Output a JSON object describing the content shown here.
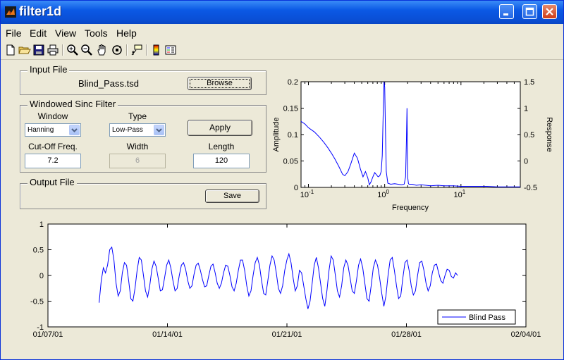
{
  "window": {
    "title": "filter1d",
    "icon": "matlab-icon",
    "controls": [
      "minimize",
      "maximize",
      "close"
    ]
  },
  "menu": [
    "File",
    "Edit",
    "View",
    "Tools",
    "Help"
  ],
  "toolbar": [
    "new-file-icon",
    "open-folder-icon",
    "save-icon",
    "print-icon",
    "zoom-in-icon",
    "zoom-out-icon",
    "pan-hand-icon",
    "rotate-3d-icon",
    "data-cursor-icon",
    "colorbar-icon",
    "legend-icon"
  ],
  "input_file": {
    "title": "Input File",
    "filename": "Blind_Pass.tsd",
    "browse_label": "Browse"
  },
  "filter": {
    "title": "Windowed Sinc Filter",
    "window_label": "Window",
    "window_value": "Hanning",
    "type_label": "Type",
    "type_value": "Low-Pass",
    "apply_label": "Apply",
    "cutoff_label": "Cut-Off Freq.",
    "cutoff_value": "7.2",
    "width_label": "Width",
    "width_value": "6",
    "length_label": "Length",
    "length_value": "120"
  },
  "output_file": {
    "title": "Output File",
    "save_label": "Save"
  },
  "colors": {
    "series": "#0000ff",
    "titlebar": "#0a4fd6"
  },
  "chart_data": [
    {
      "type": "line",
      "xlabel": "Frequency",
      "ylabel": "Amplitude",
      "ylabel_right": "Response",
      "x_scale": "log",
      "xlim": [
        0.08,
        60
      ],
      "ylim": [
        0,
        0.2
      ],
      "ylim_right": [
        -0.5,
        1.5
      ],
      "x_ticks": [
        {
          "label": "10",
          "exp": "-1",
          "value": 0.1
        },
        {
          "label": "10",
          "exp": "0",
          "value": 1
        },
        {
          "label": "10",
          "exp": "1",
          "value": 10
        }
      ],
      "y_ticks": [
        "0",
        "0.05",
        "0.1",
        "0.15",
        "0.2"
      ],
      "y_tick_values": [
        0,
        0.05,
        0.1,
        0.15,
        0.2
      ],
      "y_right_ticks": [
        "-0.5",
        "0",
        "0.5",
        "1",
        "1.5"
      ],
      "y_right_tick_values": [
        -0.5,
        0,
        0.5,
        1,
        1.5
      ],
      "series": [
        {
          "x": [
            0.08,
            0.09,
            0.1,
            0.12,
            0.14,
            0.16,
            0.18,
            0.2,
            0.22,
            0.25,
            0.28,
            0.3,
            0.33,
            0.36,
            0.4,
            0.44,
            0.48,
            0.52,
            0.56,
            0.6,
            0.63,
            0.66,
            0.7,
            0.74,
            0.78,
            0.82,
            0.86,
            0.9,
            0.93,
            0.96,
            0.98,
            1.0,
            1.02,
            1.05,
            1.1,
            1.2,
            1.35,
            1.5,
            1.65,
            1.8,
            1.88,
            1.93,
            1.96,
            2.0,
            2.05,
            2.1,
            2.3,
            2.6,
            3,
            4,
            5,
            6,
            8,
            10,
            13,
            17,
            22,
            30,
            40,
            50,
            60
          ],
          "y": [
            0.125,
            0.12,
            0.113,
            0.105,
            0.095,
            0.085,
            0.075,
            0.065,
            0.055,
            0.04,
            0.025,
            0.022,
            0.03,
            0.045,
            0.065,
            0.055,
            0.035,
            0.02,
            0.03,
            0.018,
            0.005,
            0.01,
            0.02,
            0.028,
            0.024,
            0.02,
            0.022,
            0.03,
            0.06,
            0.15,
            0.2,
            0.19,
            0.12,
            0.03,
            0.008,
            0.006,
            0.007,
            0.006,
            0.005,
            0.006,
            0.02,
            0.09,
            0.15,
            0.02,
            0.007,
            0.006,
            0.006,
            0.004,
            0.005,
            0.003,
            0.004,
            0.003,
            0.003,
            0.002,
            0.002,
            0.002,
            0.002,
            0.001,
            0.001,
            0.001,
            0.001
          ]
        }
      ]
    },
    {
      "type": "line",
      "ylim": [
        -1,
        1
      ],
      "y_ticks": [
        "-1",
        "-0.5",
        "0",
        "0.5",
        "1"
      ],
      "y_tick_values": [
        -1,
        -0.5,
        0,
        0.5,
        1
      ],
      "x_ticks": [
        "01/07/01",
        "01/14/01",
        "01/21/01",
        "01/28/01",
        "02/04/01"
      ],
      "legend": {
        "position": "bottom-right"
      },
      "series": [
        {
          "name": "Blind Pass",
          "start_date": "2001-01-10",
          "end_date": "2001-01-31",
          "values": [
            -0.53,
            -0.1,
            0.15,
            0.05,
            0.2,
            0.5,
            0.55,
            0.3,
            -0.15,
            -0.4,
            -0.3,
            0.05,
            0.25,
            0.2,
            -0.1,
            -0.45,
            -0.5,
            -0.25,
            0.1,
            0.35,
            0.3,
            0.0,
            -0.3,
            -0.42,
            -0.2,
            0.12,
            0.28,
            0.18,
            -0.05,
            -0.3,
            -0.28,
            -0.05,
            0.2,
            0.3,
            0.15,
            -0.1,
            -0.3,
            -0.25,
            0.0,
            0.2,
            0.25,
            0.12,
            -0.1,
            -0.25,
            -0.2,
            0.02,
            0.2,
            0.24,
            0.1,
            -0.08,
            -0.22,
            -0.2,
            0.0,
            0.18,
            0.22,
            0.05,
            -0.15,
            -0.25,
            -0.15,
            0.05,
            0.2,
            0.18,
            0.0,
            -0.22,
            -0.3,
            -0.15,
            0.1,
            0.3,
            0.3,
            0.1,
            -0.2,
            -0.4,
            -0.3,
            0.0,
            0.25,
            0.35,
            0.2,
            -0.1,
            -0.35,
            -0.38,
            -0.1,
            0.2,
            0.38,
            0.3,
            0.05,
            -0.25,
            -0.35,
            -0.2,
            0.1,
            0.3,
            0.42,
            0.25,
            -0.05,
            -0.3,
            -0.2,
            0.1,
            0.05,
            -0.2,
            -0.45,
            -0.65,
            -0.5,
            -0.15,
            0.2,
            0.35,
            0.15,
            -0.15,
            -0.45,
            -0.6,
            -0.3,
            0.1,
            0.38,
            0.3,
            0.0,
            -0.3,
            -0.42,
            -0.2,
            0.15,
            0.3,
            0.2,
            -0.05,
            -0.3,
            -0.35,
            -0.1,
            0.2,
            0.32,
            0.15,
            -0.15,
            -0.45,
            -0.5,
            -0.2,
            0.15,
            0.3,
            0.2,
            -0.05,
            -0.35,
            -0.6,
            -0.4,
            0.0,
            0.3,
            0.35,
            0.1,
            -0.2,
            -0.45,
            -0.4,
            -0.05,
            0.25,
            0.3,
            0.1,
            -0.2,
            -0.38,
            -0.3,
            0.0,
            0.25,
            0.28,
            0.1,
            -0.15,
            -0.3,
            -0.2,
            0.05,
            0.2,
            0.22,
            0.05,
            -0.1,
            -0.15,
            0.0,
            0.12,
            0.1,
            -0.02,
            -0.05,
            0.05,
            0.0
          ]
        }
      ]
    }
  ]
}
